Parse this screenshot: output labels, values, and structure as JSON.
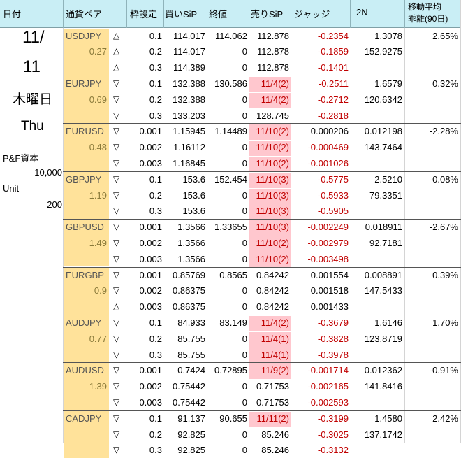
{
  "headers": {
    "date": "日付",
    "pair": "通貨ペア",
    "frame": "枠設定",
    "buy": "買いSiP",
    "close": "終値",
    "sell": "売りSiP",
    "judge": "ジャッジ",
    "n2": "2N",
    "ma_line1": "移動平均",
    "ma_line2": "乖離(90日)"
  },
  "left": {
    "date1": "11/",
    "date2": "11",
    "weekday_jp": "木曜日",
    "weekday_en": "Thu",
    "capital_label": "P&F資本",
    "capital_value": "10,000",
    "unit_label": "Unit",
    "unit_value": "200"
  },
  "groups": [
    {
      "pair": "USDJPY",
      "ratio": "0.27",
      "ma": "2.65%",
      "rows": [
        {
          "tri": "△",
          "frame": "0.1",
          "buy": "114.017",
          "close": "114.062",
          "sell": "112.878",
          "sell_hl": false,
          "judge": "-0.2354",
          "n2": "1.3078"
        },
        {
          "tri": "△",
          "frame": "0.2",
          "buy": "114.017",
          "close": "0",
          "sell": "112.878",
          "sell_hl": false,
          "judge": "-0.1859",
          "n2": "152.9275"
        },
        {
          "tri": "△",
          "frame": "0.3",
          "buy": "114.389",
          "close": "0",
          "sell": "112.878",
          "sell_hl": false,
          "judge": "-0.1401",
          "n2": ""
        }
      ]
    },
    {
      "pair": "EURJPY",
      "ratio": "0.69",
      "ma": "0.32%",
      "rows": [
        {
          "tri": "▽",
          "frame": "0.1",
          "buy": "132.388",
          "close": "130.586",
          "sell": "11/4(2)",
          "sell_hl": true,
          "judge": "-0.2511",
          "n2": "1.6579"
        },
        {
          "tri": "▽",
          "frame": "0.2",
          "buy": "132.388",
          "close": "0",
          "sell": "11/4(2)",
          "sell_hl": true,
          "judge": "-0.2712",
          "n2": "120.6342"
        },
        {
          "tri": "▽",
          "frame": "0.3",
          "buy": "133.203",
          "close": "0",
          "sell": "128.745",
          "sell_hl": false,
          "judge": "-0.2818",
          "n2": ""
        }
      ]
    },
    {
      "pair": "EURUSD",
      "ratio": "0.48",
      "ma": "-2.28%",
      "rows": [
        {
          "tri": "▽",
          "frame": "0.001",
          "buy": "1.15945",
          "close": "1.14489",
          "sell": "11/10(2)",
          "sell_hl": true,
          "judge": "0.000206",
          "n2": "0.012198"
        },
        {
          "tri": "▽",
          "frame": "0.002",
          "buy": "1.16112",
          "close": "0",
          "sell": "11/10(2)",
          "sell_hl": true,
          "judge": "-0.000469",
          "n2": "143.7464"
        },
        {
          "tri": "▽",
          "frame": "0.003",
          "buy": "1.16845",
          "close": "0",
          "sell": "11/10(2)",
          "sell_hl": true,
          "judge": "-0.001026",
          "n2": ""
        }
      ]
    },
    {
      "pair": "GBPJPY",
      "ratio": "1.19",
      "ma": "-0.08%",
      "rows": [
        {
          "tri": "▽",
          "frame": "0.1",
          "buy": "153.6",
          "close": "152.454",
          "sell": "11/10(3)",
          "sell_hl": true,
          "judge": "-0.5775",
          "n2": "2.5210"
        },
        {
          "tri": "▽",
          "frame": "0.2",
          "buy": "153.6",
          "close": "0",
          "sell": "11/10(3)",
          "sell_hl": true,
          "judge": "-0.5933",
          "n2": "79.3351"
        },
        {
          "tri": "▽",
          "frame": "0.3",
          "buy": "153.6",
          "close": "0",
          "sell": "11/10(3)",
          "sell_hl": true,
          "judge": "-0.5905",
          "n2": ""
        }
      ]
    },
    {
      "pair": "GBPUSD",
      "ratio": "1.49",
      "ma": "-2.67%",
      "rows": [
        {
          "tri": "▽",
          "frame": "0.001",
          "buy": "1.3566",
          "close": "1.33655",
          "sell": "11/10(3)",
          "sell_hl": true,
          "judge": "-0.002249",
          "n2": "0.018911"
        },
        {
          "tri": "▽",
          "frame": "0.002",
          "buy": "1.3566",
          "close": "0",
          "sell": "11/10(2)",
          "sell_hl": true,
          "judge": "-0.002979",
          "n2": "92.7181"
        },
        {
          "tri": "▽",
          "frame": "0.003",
          "buy": "1.3566",
          "close": "0",
          "sell": "11/10(2)",
          "sell_hl": true,
          "judge": "-0.003498",
          "n2": ""
        }
      ]
    },
    {
      "pair": "EURGBP",
      "ratio": "0.9",
      "ma": "0.39%",
      "rows": [
        {
          "tri": "▽",
          "frame": "0.001",
          "buy": "0.85769",
          "close": "0.8565",
          "sell": "0.84242",
          "sell_hl": false,
          "judge": "0.001554",
          "n2": "0.008891"
        },
        {
          "tri": "▽",
          "frame": "0.002",
          "buy": "0.86375",
          "close": "0",
          "sell": "0.84242",
          "sell_hl": false,
          "judge": "0.001518",
          "n2": "147.5433"
        },
        {
          "tri": "△",
          "frame": "0.003",
          "buy": "0.86375",
          "close": "0",
          "sell": "0.84242",
          "sell_hl": false,
          "judge": "0.001433",
          "n2": ""
        }
      ]
    },
    {
      "pair": "AUDJPY",
      "ratio": "0.77",
      "ma": "1.70%",
      "rows": [
        {
          "tri": "▽",
          "frame": "0.1",
          "buy": "84.933",
          "close": "83.149",
          "sell": "11/4(2)",
          "sell_hl": true,
          "judge": "-0.3679",
          "n2": "1.6146"
        },
        {
          "tri": "▽",
          "frame": "0.2",
          "buy": "85.755",
          "close": "0",
          "sell": "11/4(1)",
          "sell_hl": true,
          "judge": "-0.3828",
          "n2": "123.8719"
        },
        {
          "tri": "▽",
          "frame": "0.3",
          "buy": "85.755",
          "close": "0",
          "sell": "11/4(1)",
          "sell_hl": true,
          "judge": "-0.3978",
          "n2": ""
        }
      ]
    },
    {
      "pair": "AUDUSD",
      "ratio": "1.39",
      "ma": "-0.91%",
      "rows": [
        {
          "tri": "▽",
          "frame": "0.001",
          "buy": "0.7424",
          "close": "0.72895",
          "sell": "11/9(2)",
          "sell_hl": true,
          "judge": "-0.001714",
          "n2": "0.012362"
        },
        {
          "tri": "▽",
          "frame": "0.002",
          "buy": "0.75442",
          "close": "0",
          "sell": "0.71753",
          "sell_hl": false,
          "judge": "-0.002165",
          "n2": "141.8416"
        },
        {
          "tri": "▽",
          "frame": "0.003",
          "buy": "0.75442",
          "close": "0",
          "sell": "0.71753",
          "sell_hl": false,
          "judge": "-0.002593",
          "n2": ""
        }
      ]
    },
    {
      "pair": "CADJPY",
      "ratio": "",
      "ma": "2.42%",
      "rows": [
        {
          "tri": "▽",
          "frame": "0.1",
          "buy": "91.137",
          "close": "90.655",
          "sell": "11/11(2)",
          "sell_hl": true,
          "judge": "-0.3199",
          "n2": "1.4580"
        },
        {
          "tri": "▽",
          "frame": "0.2",
          "buy": "92.825",
          "close": "0",
          "sell": "85.246",
          "sell_hl": false,
          "judge": "-0.3025",
          "n2": "137.1742"
        },
        {
          "tri": "▽",
          "frame": "0.3",
          "buy": "92.825",
          "close": "0",
          "sell": "85.246",
          "sell_hl": false,
          "judge": "-0.3132",
          "n2": ""
        }
      ]
    }
  ]
}
